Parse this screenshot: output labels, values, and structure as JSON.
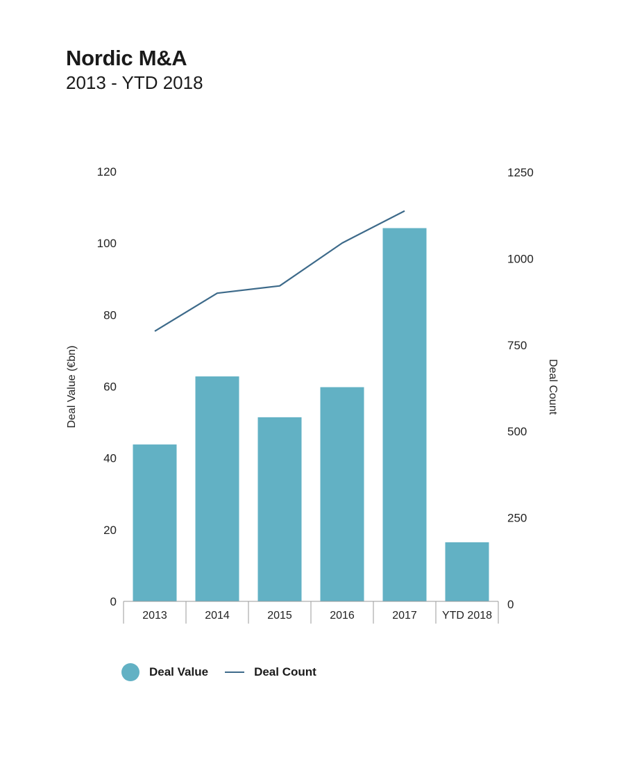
{
  "header": {
    "title": "Nordic M&A",
    "subtitle": "2013 - YTD 2018"
  },
  "colors": {
    "bar": "#62b1c4",
    "line": "#3d6a8a",
    "axis": "#9a9a9a"
  },
  "legend": {
    "deal_value": "Deal Value",
    "deal_count": "Deal Count"
  },
  "chart_data": {
    "type": "bar",
    "title": "Nordic M&A",
    "subtitle": "2013 - YTD 2018",
    "categories": [
      "2013",
      "2014",
      "2015",
      "2016",
      "2017",
      "YTD 2018"
    ],
    "series": [
      {
        "name": "Deal Value",
        "type": "bar",
        "axis": "left",
        "values": [
          43.8,
          62.8,
          51.4,
          59.8,
          104.2,
          16.5
        ]
      },
      {
        "name": "Deal Count",
        "type": "line",
        "axis": "right",
        "values": [
          790,
          900,
          921,
          1045,
          1138,
          null
        ]
      }
    ],
    "ylabel": "Deal Value (€bn)",
    "ylabel_right": "Deal Count",
    "ylim": [
      0,
      120
    ],
    "ylim_right": [
      0,
      1250
    ],
    "yticks": [
      "0",
      "20",
      "40",
      "60",
      "80",
      "100",
      "120"
    ],
    "yticks_right": [
      "0",
      "250",
      "500",
      "750",
      "1000",
      "1250"
    ],
    "grid": false,
    "legend_position": "bottom-left"
  }
}
